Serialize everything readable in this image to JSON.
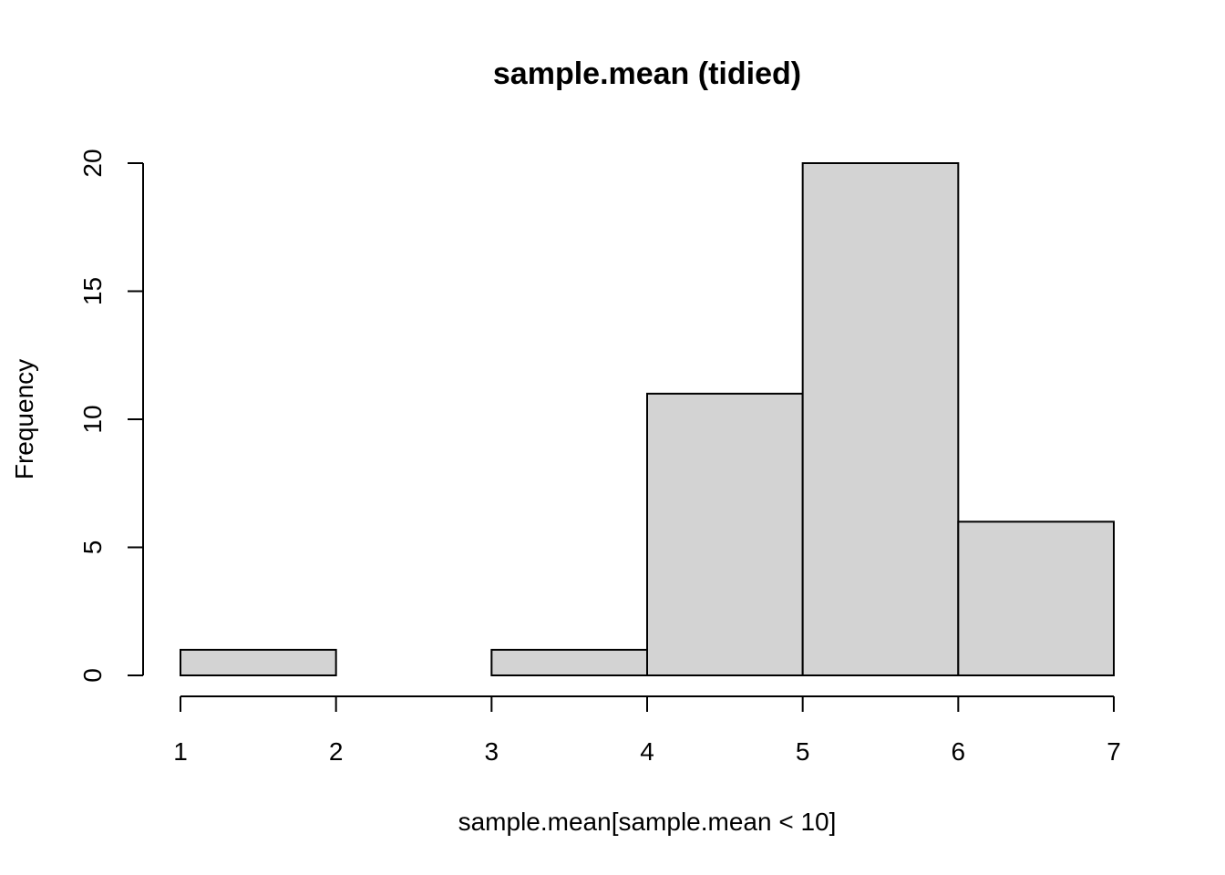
{
  "chart_data": {
    "type": "bar",
    "title": "sample.mean (tidied)",
    "xlabel": "sample.mean[sample.mean < 10]",
    "ylabel": "Frequency",
    "bins": [
      {
        "x0": 1,
        "x1": 2,
        "count": 1
      },
      {
        "x0": 2,
        "x1": 3,
        "count": 0
      },
      {
        "x0": 3,
        "x1": 4,
        "count": 1
      },
      {
        "x0": 4,
        "x1": 5,
        "count": 11
      },
      {
        "x0": 5,
        "x1": 6,
        "count": 20
      },
      {
        "x0": 6,
        "x1": 7,
        "count": 6
      }
    ],
    "xlim": [
      1,
      7
    ],
    "ylim": [
      0,
      20
    ],
    "x_ticks": [
      1,
      2,
      3,
      4,
      5,
      6,
      7
    ],
    "y_ticks": [
      0,
      5,
      10,
      15,
      20
    ],
    "bar_color": "#d3d3d3",
    "border_color": "#000000",
    "grid": false,
    "legend": "none"
  }
}
